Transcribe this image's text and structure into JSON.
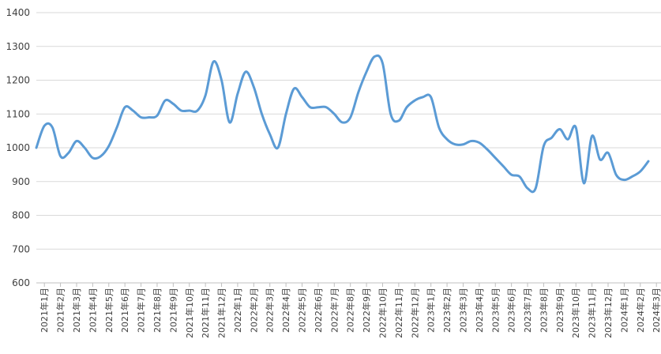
{
  "chart_data": {
    "type": "line",
    "title": "",
    "xlabel": "",
    "ylabel": "",
    "ylim": [
      600,
      1400
    ],
    "yticks": [
      600,
      700,
      800,
      900,
      1000,
      1100,
      1200,
      1300,
      1400
    ],
    "grid": true,
    "legend": "none",
    "x_tick_labels": [
      "2021年1月",
      "2021年2月",
      "2021年3月",
      "2021年4月",
      "2021年5月",
      "2021年6月",
      "2021年7月",
      "2021年8月",
      "2021年9月",
      "2021年10月",
      "2021年11月",
      "2021年12月",
      "2022年1月",
      "2022年2月",
      "2022年3月",
      "2022年4月",
      "2022年5月",
      "2022年6月",
      "2022年7月",
      "2022年8月",
      "2022年9月",
      "2022年10月",
      "2022年11月",
      "2022年12月",
      "2023年1月",
      "2023年2月",
      "2023年3月",
      "2023年4月",
      "2023年5月",
      "2023年6月",
      "2023年7月",
      "2023年8月",
      "2023年9月",
      "2023年10月",
      "2023年11月",
      "2023年12月",
      "2024年1月",
      "2024年2月",
      "2024年3月"
    ],
    "x_tick_start": 1,
    "x_tick_step": 2,
    "series": [
      {
        "color": "#5b9bd5",
        "values": [
          1000,
          1065,
          1060,
          975,
          985,
          1020,
          1000,
          970,
          975,
          1005,
          1060,
          1120,
          1110,
          1090,
          1090,
          1095,
          1140,
          1130,
          1110,
          1110,
          1110,
          1155,
          1255,
          1200,
          1075,
          1160,
          1225,
          1180,
          1100,
          1040,
          1000,
          1100,
          1175,
          1150,
          1120,
          1120,
          1120,
          1100,
          1075,
          1090,
          1165,
          1225,
          1270,
          1250,
          1100,
          1080,
          1120,
          1140,
          1150,
          1150,
          1060,
          1025,
          1010,
          1010,
          1020,
          1015,
          995,
          970,
          945,
          920,
          915,
          880,
          880,
          1005,
          1030,
          1055,
          1025,
          1060,
          895,
          1035,
          965,
          985,
          920,
          905,
          915,
          930,
          960
        ]
      }
    ]
  }
}
